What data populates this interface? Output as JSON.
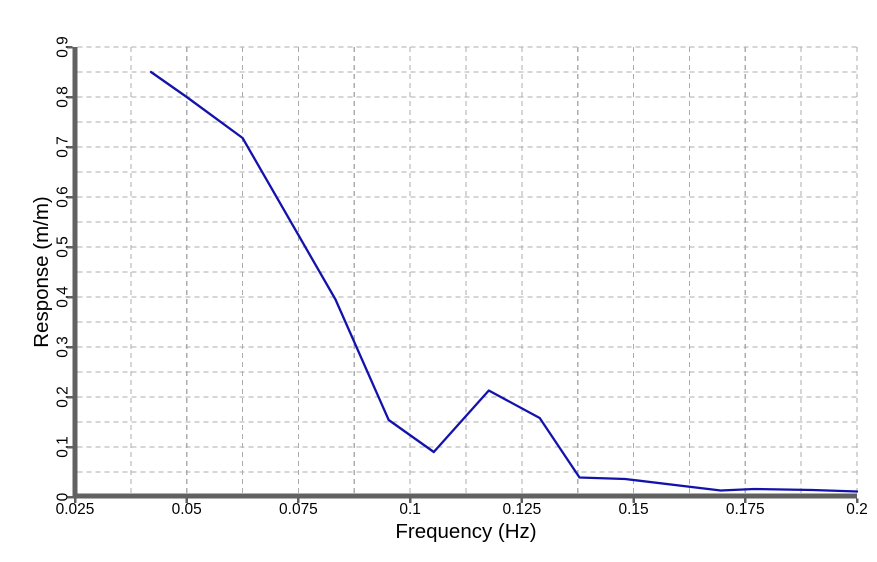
{
  "chart_data": {
    "type": "line",
    "title": "",
    "xlabel": "Frequency (Hz)",
    "ylabel": "Response (m/m)",
    "xlim": [
      0.025,
      0.2
    ],
    "ylim": [
      0,
      0.9
    ],
    "x_tick_values": [
      0.025,
      0.05,
      0.075,
      0.1,
      0.125,
      0.15,
      0.175,
      0.2
    ],
    "x_tick_labels": [
      "0.025",
      "0.05",
      "0.075",
      "0.1",
      "0.125",
      "0.15",
      "0.175",
      "0.2"
    ],
    "y_tick_values": [
      0,
      0.1,
      0.2,
      0.3,
      0.4,
      0.5,
      0.6,
      0.7,
      0.8,
      0.9
    ],
    "y_tick_labels": [
      "0",
      "0.1",
      "0.2",
      "0.3",
      "0.4",
      "0.5",
      "0.6",
      "0.7",
      "0.8",
      "0.9"
    ],
    "x_minor_grid_step": 0.0125,
    "y_minor_grid_step": 0.05,
    "grid": "dashed-gray-both-axes-minor",
    "legend": "none",
    "y_tick_label_rotation_deg": -90,
    "series": [
      {
        "name": "response",
        "color": "#1313AC",
        "points": [
          [
            0.042,
            0.85
          ],
          [
            0.05,
            0.8
          ],
          [
            0.0625,
            0.718
          ],
          [
            0.0833,
            0.395
          ],
          [
            0.0952,
            0.154
          ],
          [
            0.1053,
            0.09
          ],
          [
            0.1176,
            0.213
          ],
          [
            0.129,
            0.158
          ],
          [
            0.1379,
            0.039
          ],
          [
            0.1481,
            0.036
          ],
          [
            0.1695,
            0.013
          ],
          [
            0.177,
            0.016
          ],
          [
            0.19,
            0.014
          ],
          [
            0.2,
            0.011
          ]
        ]
      }
    ]
  },
  "colors": {
    "line": "#1313AC",
    "axis": "#616161",
    "grid": "#ACACAC",
    "text": "#000000",
    "background": "#FFFFFF"
  }
}
